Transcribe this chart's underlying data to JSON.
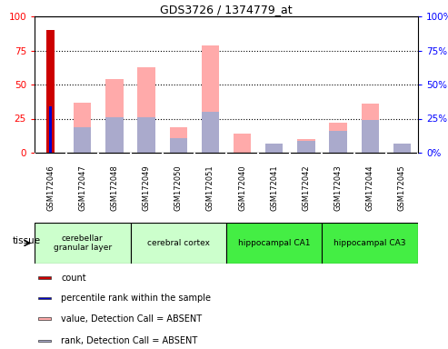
{
  "title": "GDS3726 / 1374779_at",
  "samples": [
    "GSM172046",
    "GSM172047",
    "GSM172048",
    "GSM172049",
    "GSM172050",
    "GSM172051",
    "GSM172040",
    "GSM172041",
    "GSM172042",
    "GSM172043",
    "GSM172044",
    "GSM172045"
  ],
  "count_values": [
    90,
    0,
    0,
    0,
    0,
    0,
    0,
    0,
    0,
    0,
    0,
    0
  ],
  "percentile_values": [
    34,
    0,
    0,
    0,
    0,
    0,
    0,
    0,
    0,
    0,
    0,
    0
  ],
  "absent_value_bars": [
    0,
    37,
    54,
    63,
    19,
    79,
    14,
    0,
    10,
    22,
    36,
    0
  ],
  "absent_rank_bars": [
    0,
    19,
    26,
    26,
    11,
    30,
    0,
    7,
    9,
    16,
    24,
    7
  ],
  "ylim_left": [
    0,
    100
  ],
  "ylim_right": [
    0,
    100
  ],
  "yticks_left": [
    0,
    25,
    50,
    75,
    100
  ],
  "yticks_right": [
    0,
    25,
    50,
    75,
    100
  ],
  "tissue_groups": [
    {
      "label": "cerebellar\ngranular layer",
      "start": 0,
      "end": 3,
      "color": "#ccffcc"
    },
    {
      "label": "cerebral cortex",
      "start": 3,
      "end": 6,
      "color": "#ccffcc"
    },
    {
      "label": "hippocampal CA1",
      "start": 6,
      "end": 9,
      "color": "#44ee44"
    },
    {
      "label": "hippocampal CA3",
      "start": 9,
      "end": 12,
      "color": "#44ee44"
    }
  ],
  "color_count": "#cc0000",
  "color_percentile": "#0000cc",
  "color_absent_value": "#ffaaaa",
  "color_absent_rank": "#aaaacc",
  "bar_width": 0.55,
  "background_xaxis": "#cccccc",
  "grid_color": "#000000"
}
